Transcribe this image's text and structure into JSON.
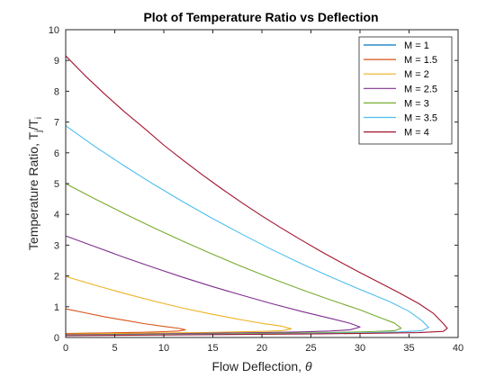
{
  "chart_data": {
    "type": "line",
    "title": "Plot of Temperature Ratio vs Deflection",
    "xlabel": {
      "main": "Flow Deflection, ",
      "symbol": "θ"
    },
    "ylabel": {
      "main": "Temperature Ratio, T",
      "sub1": "j",
      "slash": "/T",
      "sub2": "i"
    },
    "xlim": [
      0,
      40
    ],
    "ylim": [
      0,
      10
    ],
    "xticks": [
      "0",
      "5",
      "10",
      "15",
      "20",
      "25",
      "30",
      "35",
      "40"
    ],
    "yticks": [
      "0",
      "1",
      "2",
      "3",
      "4",
      "5",
      "6",
      "7",
      "8",
      "9",
      "10"
    ],
    "grid": false,
    "legend_position": "top-right",
    "series": [
      {
        "name": "M = 1",
        "color": "#0072BD",
        "points": [
          [
            0,
            0.08
          ],
          [
            0.4,
            0.08
          ],
          [
            0.8,
            0.09
          ],
          [
            0.4,
            0.1
          ],
          [
            0,
            0.1
          ]
        ]
      },
      {
        "name": "M = 1.5",
        "color": "#D95319",
        "points": [
          [
            0,
            0.93
          ],
          [
            2,
            0.8
          ],
          [
            4,
            0.67
          ],
          [
            6,
            0.56
          ],
          [
            8,
            0.45
          ],
          [
            10,
            0.36
          ],
          [
            11.5,
            0.3
          ],
          [
            12.2,
            0.25
          ],
          [
            11.5,
            0.21
          ],
          [
            10,
            0.19
          ],
          [
            8,
            0.17
          ],
          [
            6,
            0.16
          ],
          [
            4,
            0.15
          ],
          [
            2,
            0.14
          ],
          [
            0,
            0.13
          ]
        ]
      },
      {
        "name": "M = 2",
        "color": "#EDB120",
        "points": [
          [
            0,
            1.98
          ],
          [
            3,
            1.7
          ],
          [
            6,
            1.43
          ],
          [
            9,
            1.18
          ],
          [
            12,
            0.95
          ],
          [
            15,
            0.75
          ],
          [
            18,
            0.57
          ],
          [
            20,
            0.46
          ],
          [
            22,
            0.37
          ],
          [
            23,
            0.28
          ],
          [
            22,
            0.22
          ],
          [
            20,
            0.2
          ],
          [
            17,
            0.18
          ],
          [
            14,
            0.16
          ],
          [
            10,
            0.15
          ],
          [
            6,
            0.13
          ],
          [
            3,
            0.12
          ],
          [
            0,
            0.11
          ]
        ]
      },
      {
        "name": "M = 2.5",
        "color": "#7E2F8E",
        "points": [
          [
            0,
            3.3
          ],
          [
            3,
            2.95
          ],
          [
            6,
            2.6
          ],
          [
            9,
            2.27
          ],
          [
            12,
            1.95
          ],
          [
            15,
            1.65
          ],
          [
            18,
            1.37
          ],
          [
            21,
            1.1
          ],
          [
            24,
            0.85
          ],
          [
            27,
            0.62
          ],
          [
            29,
            0.46
          ],
          [
            30,
            0.34
          ],
          [
            29,
            0.25
          ],
          [
            27,
            0.21
          ],
          [
            24,
            0.18
          ],
          [
            20,
            0.16
          ],
          [
            15,
            0.14
          ],
          [
            10,
            0.12
          ],
          [
            5,
            0.1
          ],
          [
            0,
            0.09
          ]
        ]
      },
      {
        "name": "M = 3",
        "color": "#77AC30",
        "points": [
          [
            0,
            5.0
          ],
          [
            3,
            4.5
          ],
          [
            6,
            4.02
          ],
          [
            9,
            3.56
          ],
          [
            12,
            3.12
          ],
          [
            15,
            2.7
          ],
          [
            18,
            2.3
          ],
          [
            21,
            1.92
          ],
          [
            24,
            1.56
          ],
          [
            27,
            1.22
          ],
          [
            30,
            0.9
          ],
          [
            32,
            0.65
          ],
          [
            33.5,
            0.47
          ],
          [
            34.2,
            0.3
          ],
          [
            33.5,
            0.22
          ],
          [
            31,
            0.19
          ],
          [
            27,
            0.16
          ],
          [
            22,
            0.14
          ],
          [
            16,
            0.12
          ],
          [
            10,
            0.1
          ],
          [
            5,
            0.09
          ],
          [
            0,
            0.08
          ]
        ]
      },
      {
        "name": "M = 3.5",
        "color": "#4DBEEE",
        "points": [
          [
            0,
            6.88
          ],
          [
            3,
            6.2
          ],
          [
            6,
            5.57
          ],
          [
            9,
            4.97
          ],
          [
            12,
            4.4
          ],
          [
            15,
            3.86
          ],
          [
            18,
            3.35
          ],
          [
            21,
            2.86
          ],
          [
            24,
            2.4
          ],
          [
            27,
            1.97
          ],
          [
            30,
            1.56
          ],
          [
            33,
            1.17
          ],
          [
            35,
            0.85
          ],
          [
            36.3,
            0.55
          ],
          [
            37,
            0.33
          ],
          [
            36.3,
            0.22
          ],
          [
            34,
            0.18
          ],
          [
            30,
            0.15
          ],
          [
            25,
            0.13
          ],
          [
            18,
            0.11
          ],
          [
            10,
            0.09
          ],
          [
            5,
            0.08
          ],
          [
            0,
            0.07
          ]
        ]
      },
      {
        "name": "M = 4",
        "color": "#A2142F",
        "points": [
          [
            0,
            9.15
          ],
          [
            2,
            8.5
          ],
          [
            4,
            7.9
          ],
          [
            6,
            7.33
          ],
          [
            8,
            6.8
          ],
          [
            10,
            6.25
          ],
          [
            12,
            5.75
          ],
          [
            14,
            5.27
          ],
          [
            16,
            4.81
          ],
          [
            18,
            4.37
          ],
          [
            20,
            3.95
          ],
          [
            22,
            3.55
          ],
          [
            24,
            3.17
          ],
          [
            26,
            2.8
          ],
          [
            28,
            2.45
          ],
          [
            30,
            2.11
          ],
          [
            32,
            1.78
          ],
          [
            34,
            1.45
          ],
          [
            36,
            1.1
          ],
          [
            37.5,
            0.78
          ],
          [
            38.5,
            0.45
          ],
          [
            38.9,
            0.3
          ],
          [
            38.5,
            0.2
          ],
          [
            36,
            0.16
          ],
          [
            32,
            0.14
          ],
          [
            26,
            0.12
          ],
          [
            18,
            0.1
          ],
          [
            10,
            0.08
          ],
          [
            5,
            0.07
          ],
          [
            0,
            0.06
          ]
        ]
      }
    ]
  }
}
